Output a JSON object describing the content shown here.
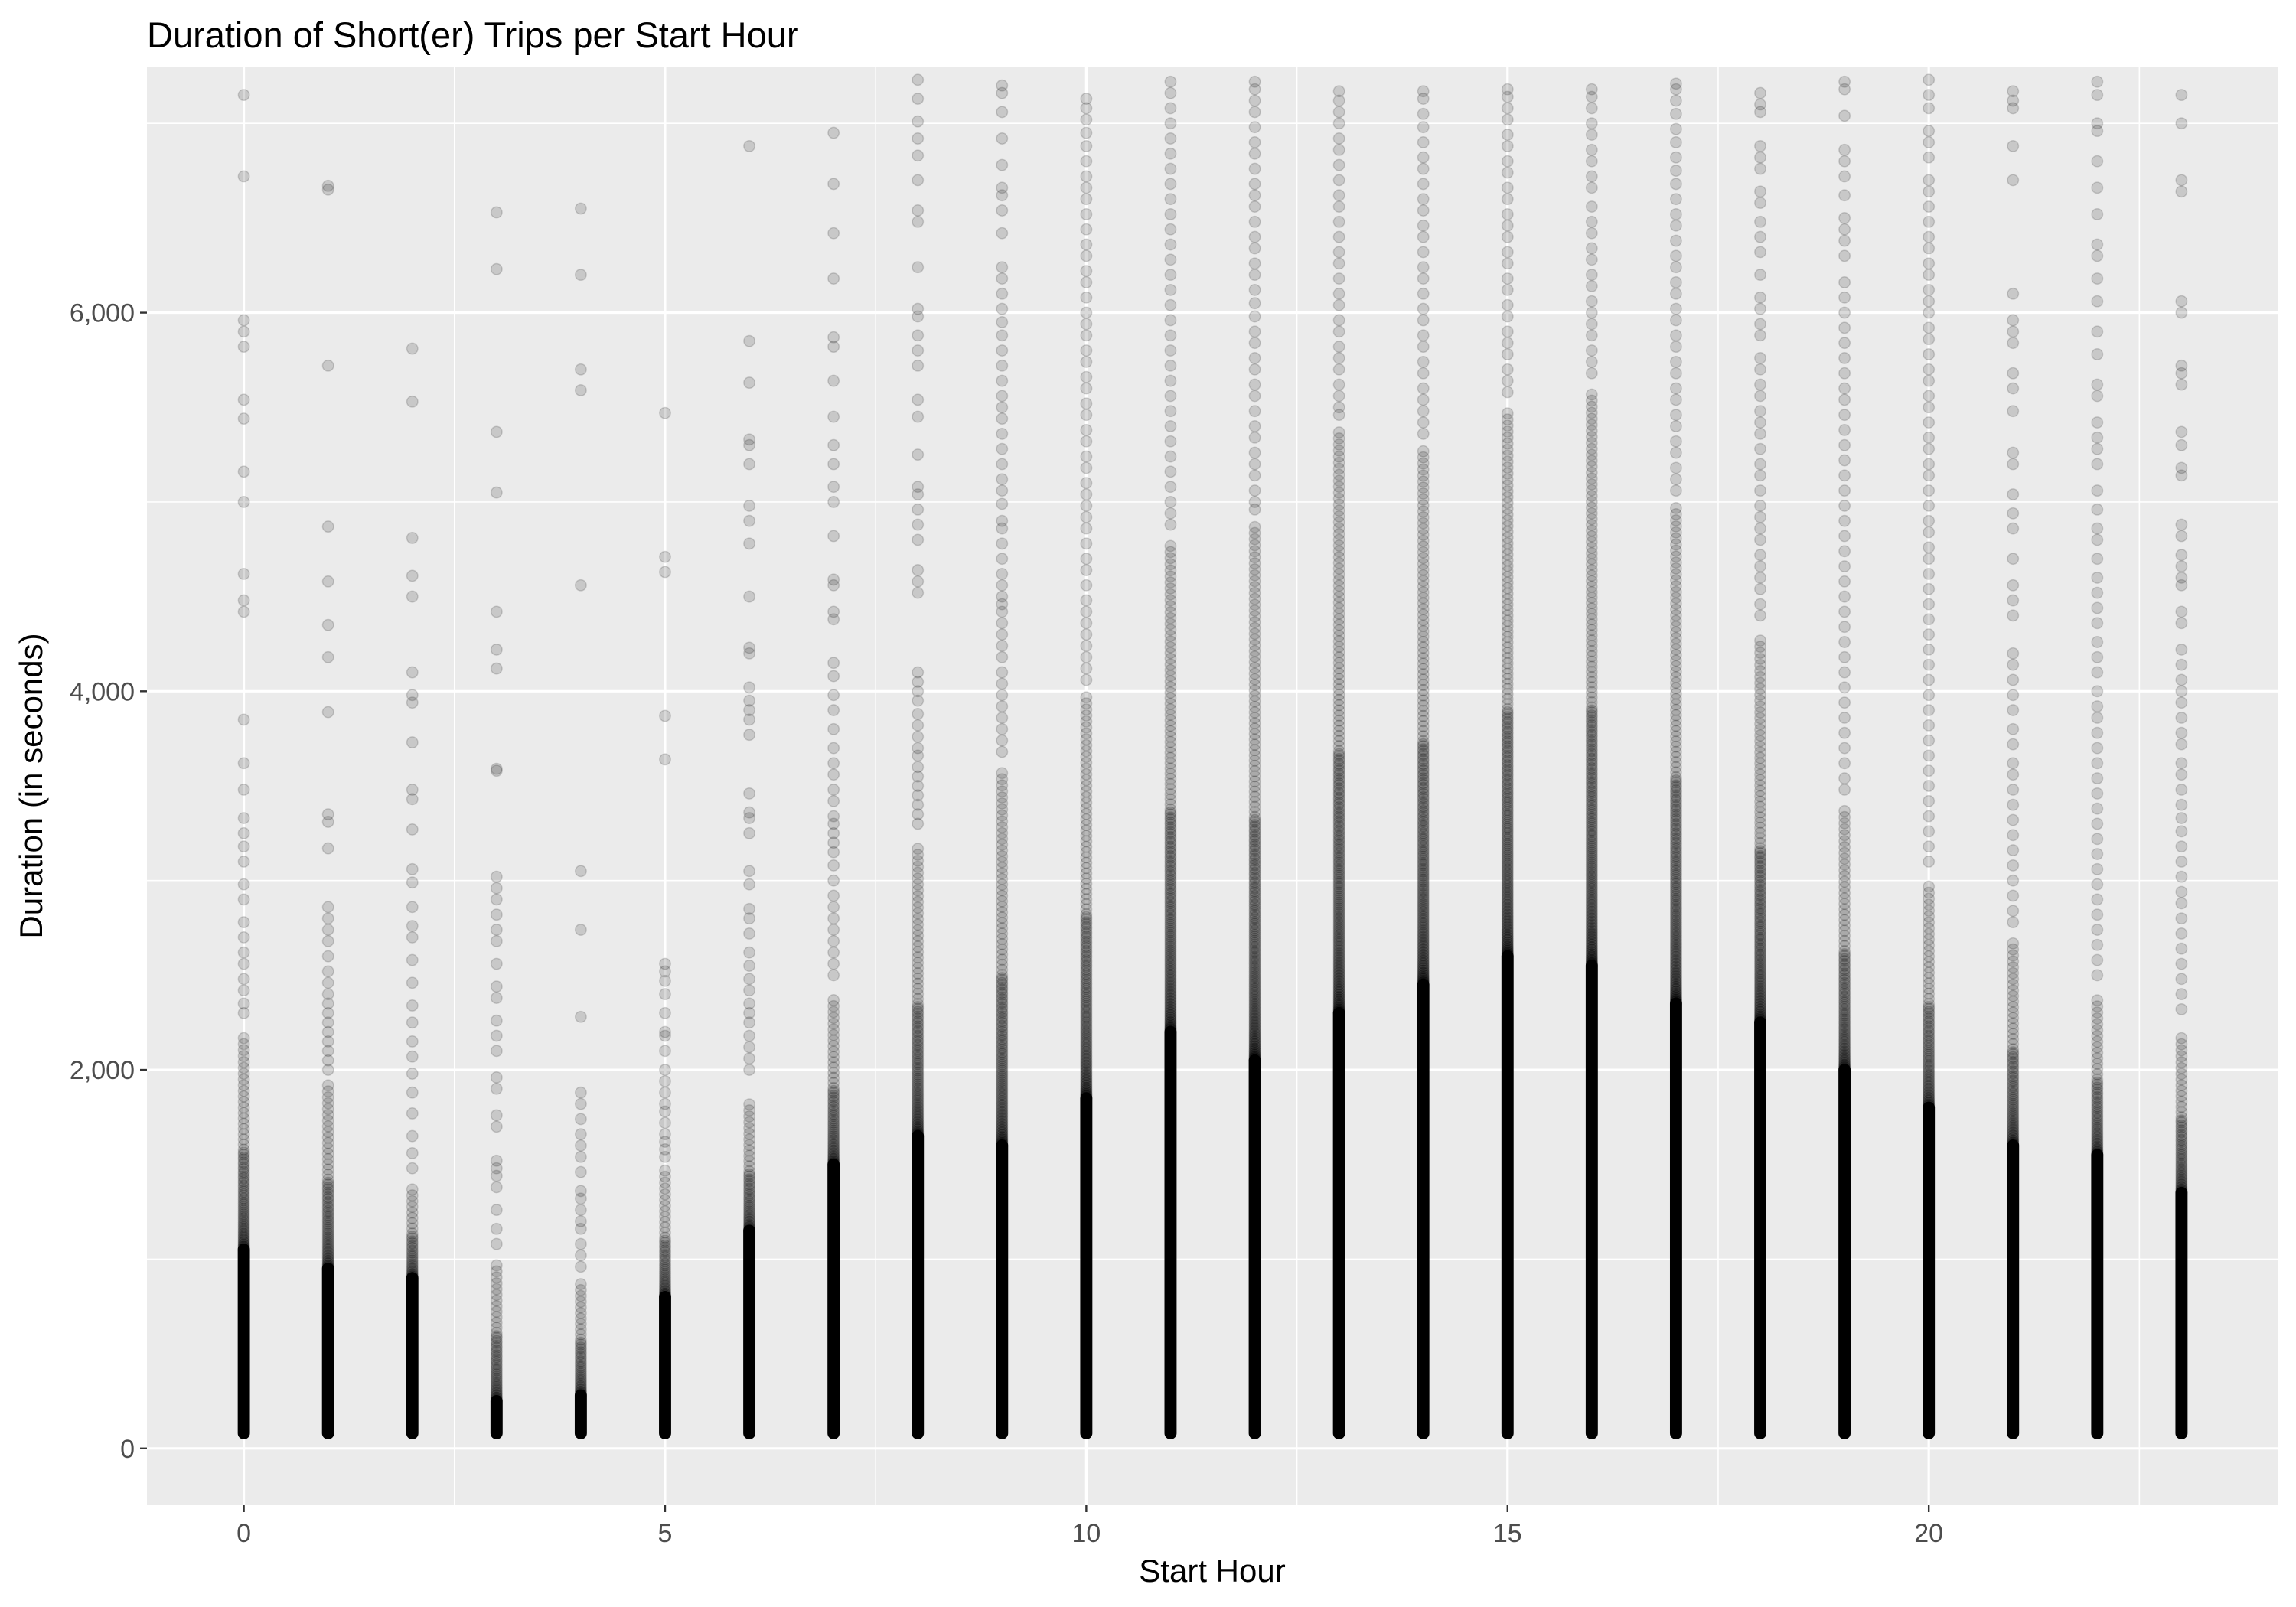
{
  "chart_data": {
    "type": "scatter",
    "title": "Duration of Short(er) Trips per Start Hour",
    "xlabel": "Start Hour",
    "ylabel": "Duration (in seconds)",
    "xlim": [
      -1.15,
      24.15
    ],
    "ylim": [
      -300,
      7300
    ],
    "x_ticks": [
      0,
      5,
      10,
      15,
      20
    ],
    "x_tick_labels": [
      "0",
      "5",
      "10",
      "15",
      "20"
    ],
    "y_ticks": [
      0,
      2000,
      4000,
      6000
    ],
    "y_tick_labels": [
      "0",
      "2,000",
      "4,000",
      "6,000"
    ],
    "grid": true,
    "legend": "none",
    "point_opacity": 0.15,
    "background_color": "#ebebeb",
    "point_color": "#000000",
    "hours": [
      {
        "x": 0,
        "dense_max": 1050,
        "band_top": 2200,
        "max": 7150,
        "outliers": [
          6720,
          5960,
          5900,
          5820,
          5540,
          5440,
          5160,
          5000,
          4620,
          4480,
          4420,
          3850,
          3620,
          3480,
          3330,
          3250,
          3180,
          3100,
          2980,
          2900,
          2780,
          2700,
          2620,
          2560,
          2480,
          2420,
          2350,
          2300
        ]
      },
      {
        "x": 1,
        "dense_max": 950,
        "band_top": 1950,
        "max": 6670,
        "outliers": [
          6650,
          5720,
          4870,
          4580,
          4350,
          4180,
          3890,
          3350,
          3310,
          3170,
          2860,
          2800,
          2740,
          2680,
          2600,
          2520,
          2460,
          2400,
          2350,
          2300,
          2250,
          2200,
          2150,
          2100,
          2050,
          2000
        ]
      },
      {
        "x": 2,
        "dense_max": 900,
        "band_top": 1400,
        "max": 5810,
        "outliers": [
          5530,
          4810,
          4610,
          4500,
          4100,
          3980,
          3940,
          3730,
          3480,
          3430,
          3270,
          3060,
          2990,
          2860,
          2760,
          2700,
          2580,
          2460,
          2340,
          2250,
          2150,
          2070,
          1980,
          1880,
          1770,
          1650,
          1560,
          1480
        ]
      },
      {
        "x": 3,
        "dense_max": 250,
        "band_top": 1000,
        "max": 6530,
        "outliers": [
          6230,
          5370,
          5050,
          4420,
          4220,
          4120,
          3590,
          3580,
          3020,
          2960,
          2900,
          2820,
          2740,
          2680,
          2560,
          2440,
          2380,
          2260,
          2180,
          2100,
          1960,
          1900,
          1760,
          1700,
          1520,
          1480,
          1440,
          1380,
          1260,
          1160,
          1080
        ]
      },
      {
        "x": 4,
        "dense_max": 280,
        "band_top": 900,
        "max": 6550,
        "outliers": [
          6200,
          5700,
          5590,
          4560,
          3050,
          2740,
          2280,
          1880,
          1820,
          1740,
          1660,
          1600,
          1540,
          1460,
          1360,
          1320,
          1260,
          1200,
          1160,
          1080,
          1020,
          960
        ]
      },
      {
        "x": 5,
        "dense_max": 800,
        "band_top": 1500,
        "max": 5470,
        "outliers": [
          4710,
          4630,
          3870,
          3640,
          2560,
          2520,
          2470,
          2400,
          2300,
          2200,
          2180,
          2100,
          2000,
          1940,
          1880,
          1820,
          1780,
          1720,
          1660,
          1620,
          1580,
          1540
        ]
      },
      {
        "x": 6,
        "dense_max": 1150,
        "band_top": 1850,
        "max": 6880,
        "outliers": [
          5850,
          5630,
          5330,
          5300,
          5200,
          4980,
          4900,
          4780,
          4500,
          4230,
          4200,
          4020,
          3950,
          3900,
          3850,
          3770,
          3460,
          3360,
          3330,
          3250,
          3050,
          2980,
          2850,
          2800,
          2720,
          2620,
          2550,
          2480,
          2420,
          2350,
          2300,
          2250,
          2180,
          2120,
          2060,
          2000
        ]
      },
      {
        "x": 7,
        "dense_max": 1500,
        "band_top": 2400,
        "max": 6950,
        "outliers": [
          6680,
          6420,
          6180,
          5870,
          5820,
          5640,
          5450,
          5300,
          5200,
          5080,
          5000,
          4820,
          4590,
          4560,
          4420,
          4380,
          4150,
          4080,
          3980,
          3900,
          3800,
          3700,
          3620,
          3560,
          3480,
          3420,
          3340,
          3300,
          3250,
          3200,
          3150,
          3080,
          3000,
          2920,
          2860,
          2800,
          2740,
          2680,
          2620,
          2560,
          2500
        ]
      },
      {
        "x": 8,
        "dense_max": 1650,
        "band_top": 3200,
        "max": 7230,
        "outliers": [
          7130,
          7010,
          6920,
          6830,
          6700,
          6540,
          6480,
          6240,
          6020,
          5980,
          5880,
          5800,
          5720,
          5540,
          5450,
          5250,
          5080,
          5040,
          4960,
          4880,
          4800,
          4640,
          4580,
          4520,
          4100,
          4050,
          4000,
          3950,
          3880,
          3820,
          3760,
          3700,
          3660,
          3600,
          3550,
          3500,
          3450,
          3400,
          3350,
          3300
        ]
      },
      {
        "x": 9,
        "dense_max": 1600,
        "band_top": 3600,
        "max": 7200,
        "outliers": [
          7160,
          7060,
          6920,
          6780,
          6660,
          6620,
          6540,
          6420,
          6240,
          6180,
          6100,
          6020,
          5950,
          5880,
          5800,
          5720,
          5640,
          5560,
          5500,
          5440,
          5360,
          5280,
          5200,
          5120,
          5060,
          4990,
          4900,
          4860,
          4780,
          4700,
          4620,
          4560,
          4500,
          4460,
          4420,
          4360,
          4300,
          4240,
          4180,
          4100,
          4040,
          3980,
          3920,
          3860,
          3800,
          3740,
          3680
        ]
      },
      {
        "x": 10,
        "dense_max": 1850,
        "band_top": 4000,
        "max": 7130,
        "outliers": [
          7080,
          7020,
          6950,
          6880,
          6800,
          6720,
          6660,
          6600,
          6520,
          6440,
          6360,
          6300,
          6220,
          6160,
          6080,
          6000,
          5940,
          5880,
          5800,
          5740,
          5660,
          5600,
          5520,
          5460,
          5380,
          5320,
          5240,
          5180,
          5100,
          5040,
          4980,
          4920,
          4860,
          4780,
          4700,
          4640,
          4560,
          4480,
          4420,
          4360,
          4300,
          4240,
          4180,
          4120,
          4060
        ]
      },
      {
        "x": 11,
        "dense_max": 2200,
        "band_top": 4800,
        "max": 7220,
        "outliers": [
          7160,
          7080,
          7000,
          6920,
          6840,
          6760,
          6680,
          6600,
          6520,
          6440,
          6360,
          6280,
          6200,
          6120,
          6040,
          5960,
          5880,
          5800,
          5720,
          5640,
          5560,
          5480,
          5400,
          5320,
          5240,
          5160,
          5080,
          5000,
          4940,
          4880
        ]
      },
      {
        "x": 12,
        "dense_max": 2050,
        "band_top": 4900,
        "max": 7220,
        "outliers": [
          7180,
          7120,
          7060,
          6980,
          6900,
          6840,
          6760,
          6680,
          6620,
          6560,
          6480,
          6400,
          6340,
          6260,
          6200,
          6120,
          6050,
          5980,
          5900,
          5840,
          5760,
          5700,
          5620,
          5560,
          5480,
          5400,
          5340,
          5260,
          5200,
          5140,
          5060,
          5000,
          4960
        ]
      },
      {
        "x": 13,
        "dense_max": 2300,
        "band_top": 5400,
        "max": 7170,
        "outliers": [
          7120,
          7060,
          7000,
          6920,
          6860,
          6780,
          6700,
          6620,
          6560,
          6480,
          6400,
          6320,
          6260,
          6180,
          6100,
          6040,
          5960,
          5900,
          5820,
          5760,
          5700,
          5620,
          5560,
          5500,
          5460
        ]
      },
      {
        "x": 14,
        "dense_max": 2450,
        "band_top": 5300,
        "max": 7170,
        "outliers": [
          7130,
          7050,
          6980,
          6900,
          6820,
          6760,
          6680,
          6600,
          6540,
          6460,
          6400,
          6320,
          6240,
          6180,
          6100,
          6020,
          5960,
          5880,
          5820,
          5740,
          5680,
          5600,
          5540,
          5480,
          5420,
          5360
        ]
      },
      {
        "x": 15,
        "dense_max": 2600,
        "band_top": 5500,
        "max": 7180,
        "outliers": [
          7140,
          7080,
          7020,
          6940,
          6880,
          6800,
          6740,
          6660,
          6600,
          6520,
          6460,
          6400,
          6320,
          6260,
          6180,
          6120,
          6040,
          5980,
          5900,
          5840,
          5780,
          5700,
          5640,
          5580
        ]
      },
      {
        "x": 16,
        "dense_max": 2550,
        "band_top": 5600,
        "max": 7180,
        "outliers": [
          7140,
          7080,
          7000,
          6940,
          6860,
          6800,
          6720,
          6660,
          6560,
          6480,
          6420,
          6340,
          6280,
          6200,
          6140,
          6060,
          6000,
          5940,
          5880,
          5800,
          5740,
          5680
        ]
      },
      {
        "x": 17,
        "dense_max": 2350,
        "band_top": 5000,
        "max": 7210,
        "outliers": [
          7180,
          7120,
          7050,
          6970,
          6900,
          6820,
          6750,
          6680,
          6600,
          6520,
          6460,
          6380,
          6300,
          6240,
          6160,
          6100,
          6020,
          5960,
          5880,
          5820,
          5740,
          5680,
          5600,
          5540,
          5460,
          5400,
          5320,
          5260,
          5180,
          5120,
          5060
        ]
      },
      {
        "x": 18,
        "dense_max": 2250,
        "band_top": 4300,
        "max": 7160,
        "outliers": [
          7100,
          7060,
          6880,
          6820,
          6760,
          6640,
          6580,
          6480,
          6400,
          6320,
          6200,
          6080,
          6020,
          5940,
          5880,
          5760,
          5700,
          5620,
          5560,
          5480,
          5420,
          5360,
          5280,
          5200,
          5140,
          5060,
          4980,
          4920,
          4860,
          4800,
          4720,
          4660,
          4600,
          4540,
          4460,
          4400
        ]
      },
      {
        "x": 19,
        "dense_max": 2000,
        "band_top": 3400,
        "max": 7220,
        "outliers": [
          7180,
          7040,
          6860,
          6800,
          6720,
          6620,
          6500,
          6440,
          6380,
          6300,
          6160,
          6080,
          6000,
          5920,
          5840,
          5760,
          5680,
          5600,
          5540,
          5460,
          5380,
          5300,
          5220,
          5140,
          5060,
          4980,
          4900,
          4820,
          4740,
          4660,
          4580,
          4500,
          4420,
          4340,
          4260,
          4180,
          4100,
          4020,
          3940,
          3860,
          3780,
          3700,
          3620,
          3540,
          3480
        ]
      },
      {
        "x": 20,
        "dense_max": 1800,
        "band_top": 3000,
        "max": 7230,
        "outliers": [
          7150,
          7080,
          6960,
          6900,
          6820,
          6700,
          6640,
          6560,
          6480,
          6400,
          6340,
          6260,
          6200,
          6120,
          6060,
          6000,
          5920,
          5860,
          5780,
          5700,
          5640,
          5560,
          5500,
          5420,
          5340,
          5280,
          5200,
          5140,
          5060,
          4980,
          4900,
          4840,
          4760,
          4700,
          4620,
          4540,
          4460,
          4380,
          4300,
          4220,
          4140,
          4060,
          3980,
          3900,
          3820,
          3740,
          3660,
          3580,
          3500,
          3420,
          3340,
          3260,
          3180,
          3100
        ]
      },
      {
        "x": 21,
        "dense_max": 1600,
        "band_top": 2700,
        "max": 7170,
        "outliers": [
          7120,
          7080,
          6880,
          6700,
          6100,
          5960,
          5900,
          5840,
          5680,
          5600,
          5480,
          5260,
          5200,
          5040,
          4940,
          4860,
          4700,
          4560,
          4480,
          4400,
          4200,
          4140,
          4060,
          3980,
          3900,
          3800,
          3720,
          3620,
          3560,
          3480,
          3400,
          3320,
          3240,
          3160,
          3080,
          3000,
          2920,
          2840,
          2780
        ]
      },
      {
        "x": 22,
        "dense_max": 1550,
        "band_top": 2400,
        "max": 7220,
        "outliers": [
          7150,
          7000,
          6960,
          6800,
          6660,
          6520,
          6360,
          6300,
          6180,
          6060,
          5900,
          5780,
          5620,
          5560,
          5420,
          5340,
          5280,
          5200,
          5060,
          4960,
          4860,
          4800,
          4700,
          4600,
          4520,
          4440,
          4360,
          4260,
          4180,
          4100,
          4000,
          3920,
          3860,
          3780,
          3700,
          3620,
          3540,
          3460,
          3380,
          3300,
          3220,
          3140,
          3060,
          2980,
          2900,
          2820,
          2740,
          2660,
          2580,
          2500
        ]
      },
      {
        "x": 23,
        "dense_max": 1350,
        "band_top": 2200,
        "max": 7150,
        "outliers": [
          7000,
          6700,
          6640,
          6060,
          6000,
          5720,
          5680,
          5620,
          5370,
          5300,
          5180,
          5140,
          4880,
          4820,
          4720,
          4660,
          4600,
          4560,
          4420,
          4360,
          4220,
          4140,
          4060,
          4000,
          3940,
          3860,
          3780,
          3720,
          3620,
          3560,
          3480,
          3400,
          3330,
          3260,
          3180,
          3100,
          3020,
          2940,
          2880,
          2800,
          2720,
          2640,
          2560,
          2480,
          2400,
          2320
        ]
      }
    ]
  }
}
